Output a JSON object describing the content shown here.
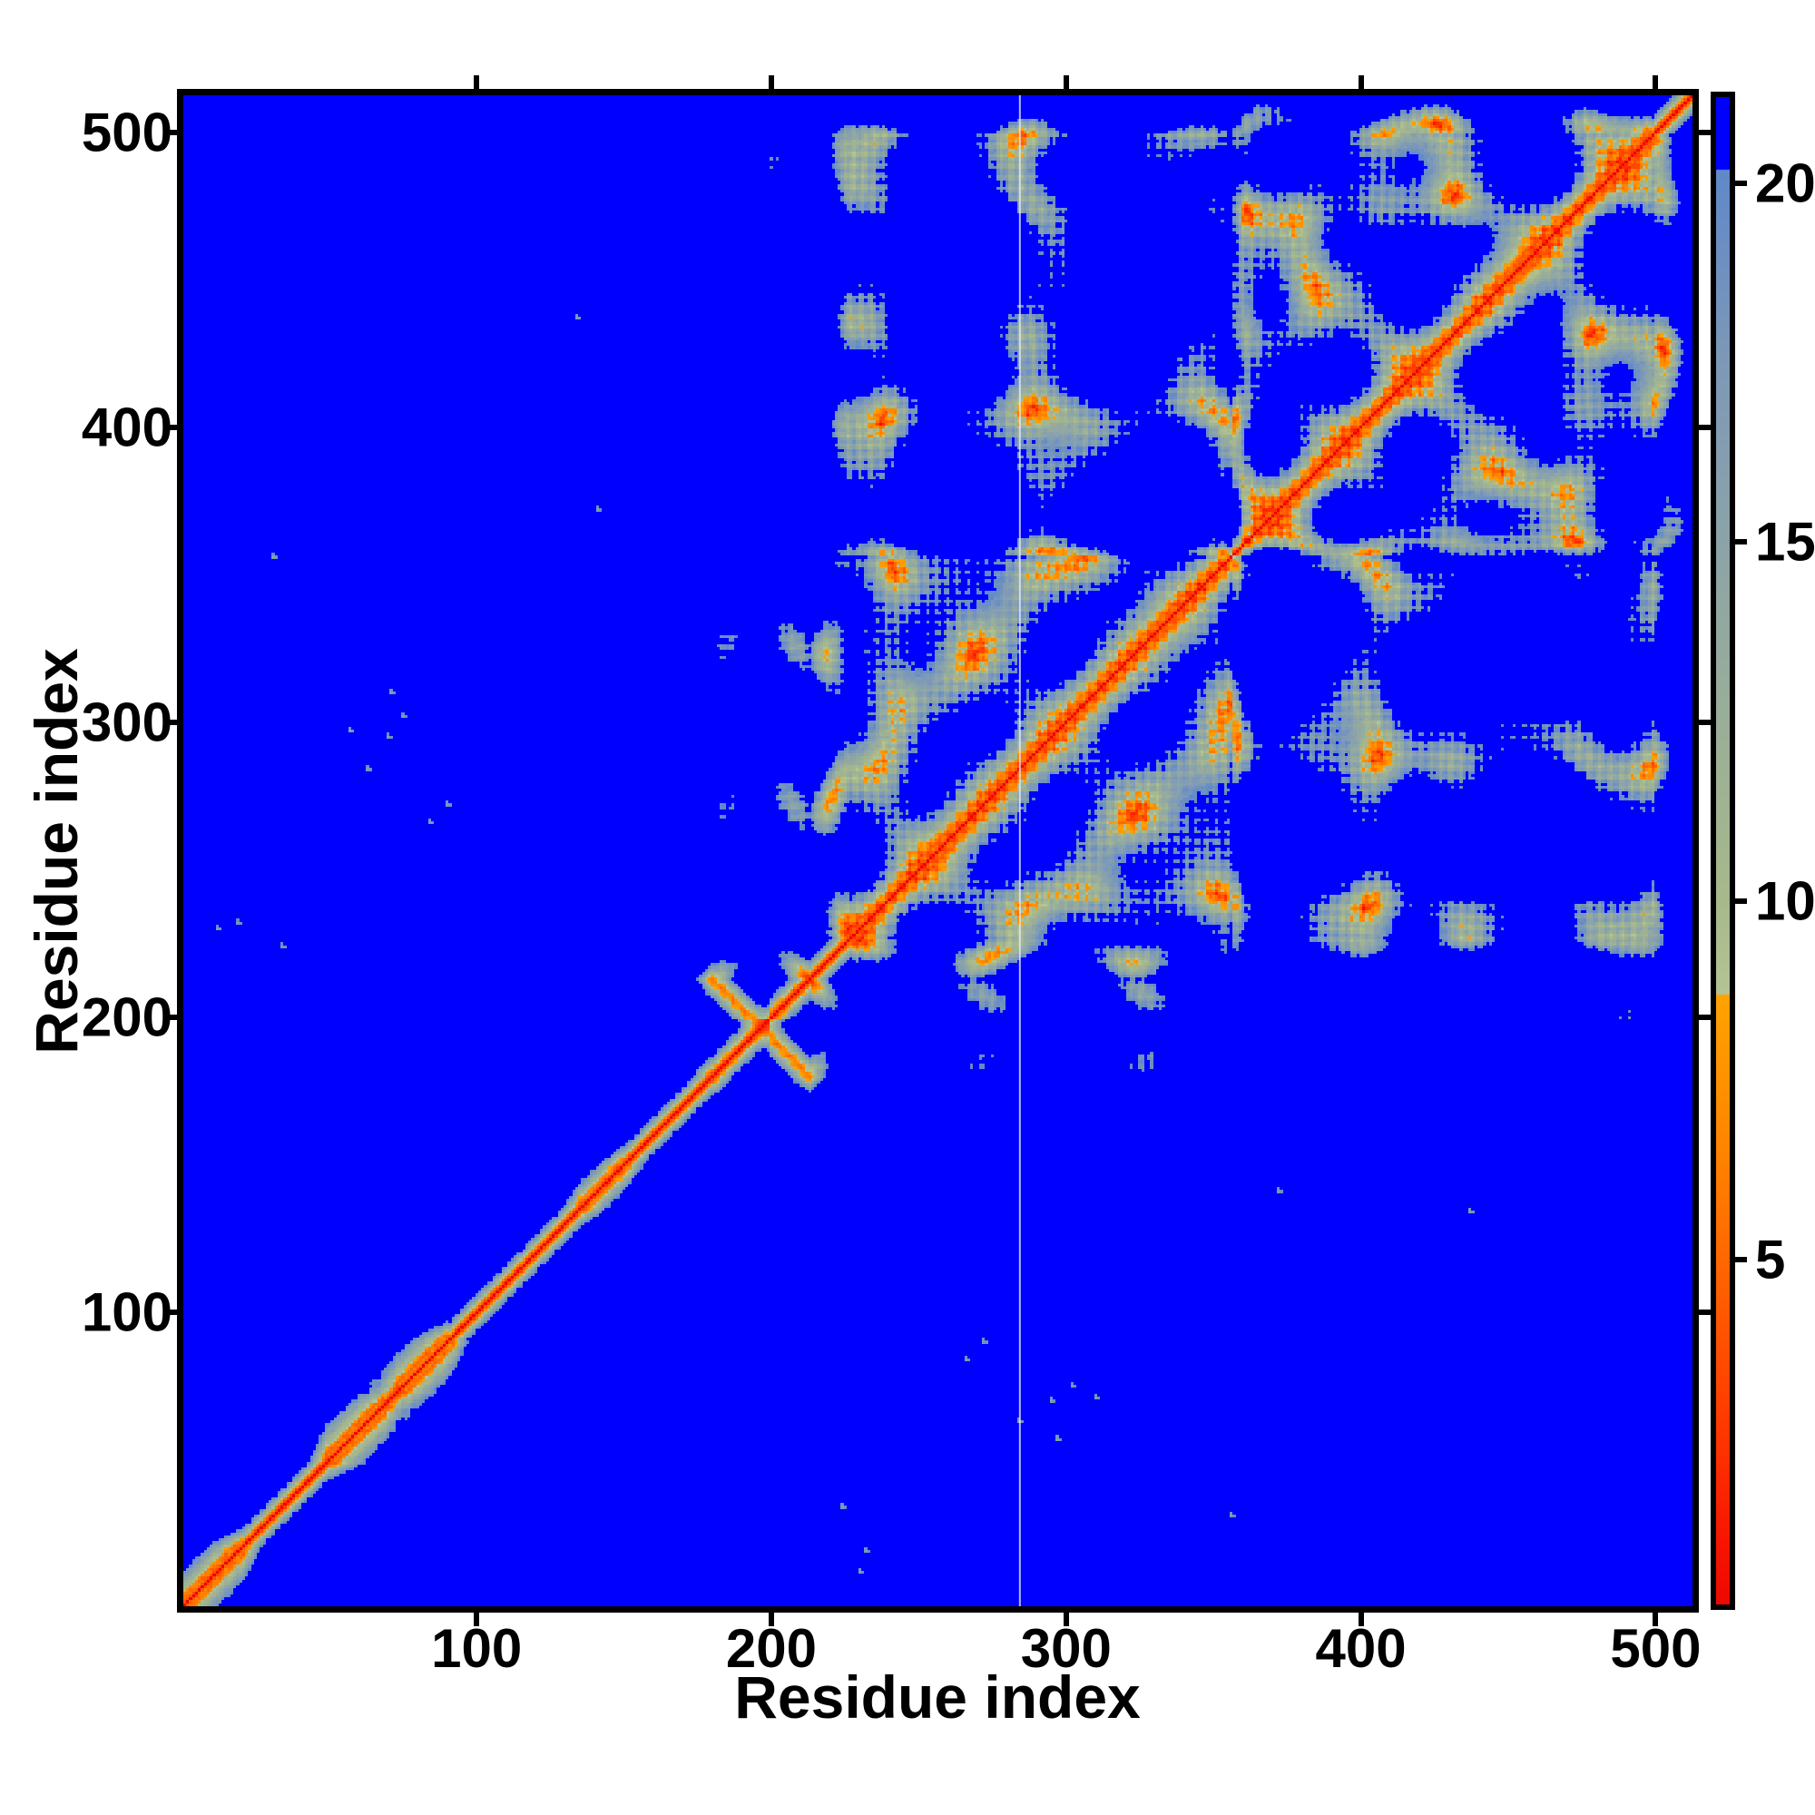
{
  "chart_data": {
    "type": "heatmap",
    "title": "",
    "xlabel": "Residue index",
    "ylabel": "Residue index",
    "x_range": [
      1,
      512
    ],
    "y_range": [
      1,
      512
    ],
    "x_ticks": [
      100,
      200,
      300,
      400,
      500
    ],
    "x_tick_labels": [
      "100",
      "200",
      "300",
      "400",
      "500"
    ],
    "y_ticks": [
      100,
      200,
      300,
      400,
      500
    ],
    "y_tick_labels": [
      "100",
      "200",
      "300",
      "400",
      "500"
    ],
    "grid": false,
    "legend_position": "none",
    "colorbar": {
      "position": "right",
      "vmin": 0.2,
      "vmax": 21.2,
      "ticks": [
        5,
        10,
        15,
        20
      ],
      "tick_labels": [
        "5",
        "10",
        "15",
        "20"
      ]
    },
    "colormap": {
      "background_rgb": [
        0,
        0,
        255
      ],
      "cutoff": 20.2,
      "orange_break": 8.7,
      "cool_stops": [
        [
          20.2,
          [
            96,
            137,
            201
          ]
        ],
        [
          17.5,
          [
            125,
            153,
            184
          ]
        ],
        [
          15.0,
          [
            140,
            164,
            168
          ]
        ],
        [
          12.0,
          [
            157,
            177,
            150
          ]
        ],
        [
          10.0,
          [
            168,
            185,
            139
          ]
        ],
        [
          8.7,
          [
            180,
            196,
            148
          ]
        ]
      ],
      "hot_stops": [
        [
          8.7,
          [
            255,
            163,
            0
          ]
        ],
        [
          6.5,
          [
            255,
            132,
            0
          ]
        ],
        [
          4.5,
          [
            255,
            94,
            0
          ]
        ],
        [
          2.5,
          [
            255,
            54,
            0
          ]
        ],
        [
          1.0,
          [
            248,
            20,
            0
          ]
        ],
        [
          0.0,
          [
            236,
            6,
            0
          ]
        ]
      ]
    },
    "artifact_column_residue": 284,
    "model": {
      "n_residues": 512,
      "helix_period": 3.6,
      "cell_noise": 1.6,
      "pieces": [
        {
          "range": [
            1,
            22
          ],
          "kind": "helix",
          "dir": [
            1,
            0.1,
            0.0
          ],
          "speed": 1.7,
          "wobble": 2.4,
          "curve": 0.02
        },
        {
          "range": [
            22,
            50
          ],
          "kind": "coil",
          "dir": [
            1,
            0.25,
            0.12
          ],
          "speed": 3.3,
          "wobble": 0.8,
          "curve": 0.006
        },
        {
          "range": [
            50,
            70
          ],
          "kind": "helix",
          "dir": [
            1,
            0.45,
            0.25
          ],
          "speed": 1.55,
          "wobble": 2.6,
          "curve": 0.02
        },
        {
          "range": [
            70,
            74
          ],
          "kind": "coil",
          "dir": [
            1,
            -0.3,
            0.35
          ],
          "speed": 2.6,
          "wobble": 1.0,
          "curve": 0.01
        },
        {
          "range": [
            74,
            92
          ],
          "kind": "helix",
          "dir": [
            1,
            0.15,
            -0.3
          ],
          "speed": 1.55,
          "wobble": 2.6,
          "curve": 0.02
        },
        {
          "range": [
            92,
            136
          ],
          "kind": "coil",
          "dir": [
            1,
            -0.15,
            0.1
          ],
          "speed": 3.3,
          "wobble": 0.8,
          "curve": 0.005
        },
        {
          "range": [
            136,
            152
          ],
          "kind": "helix",
          "dir": [
            1,
            0.2,
            0.25
          ],
          "speed": 2.3,
          "wobble": 1.8,
          "curve": 0.01
        },
        {
          "range": [
            152,
            180
          ],
          "kind": "coil",
          "dir": [
            1,
            0.1,
            -0.15
          ],
          "speed": 3.3,
          "wobble": 0.8,
          "curve": 0.005
        },
        {
          "range": [
            180,
            214
          ],
          "kind": "hairpin",
          "dir": [
            0.45,
            1,
            0.2
          ],
          "speed": 2.9,
          "wobble": 1.1,
          "sep": 6.5
        },
        {
          "range": [
            214,
            226
          ],
          "kind": "coil",
          "dir": [
            1,
            0.35,
            0.3
          ],
          "speed": 3.2,
          "wobble": 0.8,
          "curve": 0.006
        },
        {
          "range": [
            226,
            356
          ],
          "kind": "globule",
          "radii": [
            12.5,
            11,
            10
          ],
          "omega": [
            0.088,
            0.11,
            0.138
          ],
          "phase": [
            0.7,
            2.1,
            4.5
          ],
          "wobble": 2.0
        },
        {
          "range": [
            356,
            500
          ],
          "kind": "globule",
          "radii": [
            14,
            12.5,
            11
          ],
          "omega": [
            0.08,
            0.104,
            0.127
          ],
          "phase": [
            2.9,
            1.2,
            5.3
          ],
          "wobble": 2.0,
          "center_offset": [
            20,
            10,
            4
          ]
        },
        {
          "range": [
            500,
            512
          ],
          "kind": "coil",
          "dir": [
            0.6,
            0.7,
            0.4
          ],
          "speed": 3.2,
          "wobble": 0.8,
          "curve": 0.01
        }
      ],
      "speckle_contacts": [
        [
          63,
          284
        ],
        [
          70,
          295
        ],
        [
          75,
          302
        ],
        [
          71,
          310
        ],
        [
          57,
          297
        ],
        [
          31,
          356
        ],
        [
          19,
          232
        ],
        [
          12,
          230
        ],
        [
          84,
          266
        ],
        [
          90,
          272
        ],
        [
          134,
          437
        ],
        [
          141,
          372
        ],
        [
          34,
          224
        ]
      ]
    }
  }
}
